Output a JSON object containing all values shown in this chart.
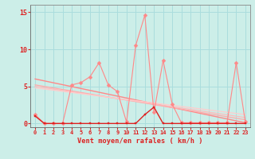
{
  "bg_color": "#cceee8",
  "grid_color": "#aadddd",
  "line_color_dark": "#dd2222",
  "line_color_mid": "#ff8888",
  "line_color_light": "#ffbbbb",
  "xlabel": "Vent moyen/en rafales ( km/h )",
  "ylim": [
    -0.5,
    16
  ],
  "xlim": [
    -0.5,
    23.5
  ],
  "yticks": [
    0,
    5,
    10,
    15
  ],
  "xticks": [
    0,
    1,
    2,
    3,
    4,
    5,
    6,
    7,
    8,
    9,
    10,
    11,
    12,
    13,
    14,
    15,
    16,
    17,
    18,
    19,
    20,
    21,
    22,
    23
  ],
  "series_spiky": [
    1.2,
    0.0,
    0.0,
    0.0,
    5.2,
    5.5,
    6.3,
    8.2,
    5.2,
    4.3,
    0.2,
    10.5,
    14.6,
    1.5,
    8.5,
    2.6,
    0.1,
    0.1,
    0.1,
    0.1,
    0.1,
    0.1,
    8.2,
    0.2
  ],
  "series_dark_low": [
    1.0,
    0.0,
    0.0,
    0.0,
    0.0,
    0.0,
    0.0,
    0.0,
    0.0,
    0.0,
    0.0,
    0.0,
    1.2,
    2.2,
    0.0,
    0.0,
    0.0,
    0.0,
    0.0,
    0.0,
    0.0,
    0.0,
    0.0,
    0.0
  ],
  "trend_lines": [
    {
      "start": 6.0,
      "end": 0.1,
      "color": "#ff8888",
      "alpha": 1.0,
      "lw": 1.0
    },
    {
      "start": 5.2,
      "end": 0.5,
      "color": "#ffaaaa",
      "alpha": 1.0,
      "lw": 0.9
    },
    {
      "start": 5.0,
      "end": 0.8,
      "color": "#ffbbbb",
      "alpha": 1.0,
      "lw": 0.9
    },
    {
      "start": 4.8,
      "end": 1.2,
      "color": "#ffcccc",
      "alpha": 1.0,
      "lw": 0.9
    }
  ]
}
